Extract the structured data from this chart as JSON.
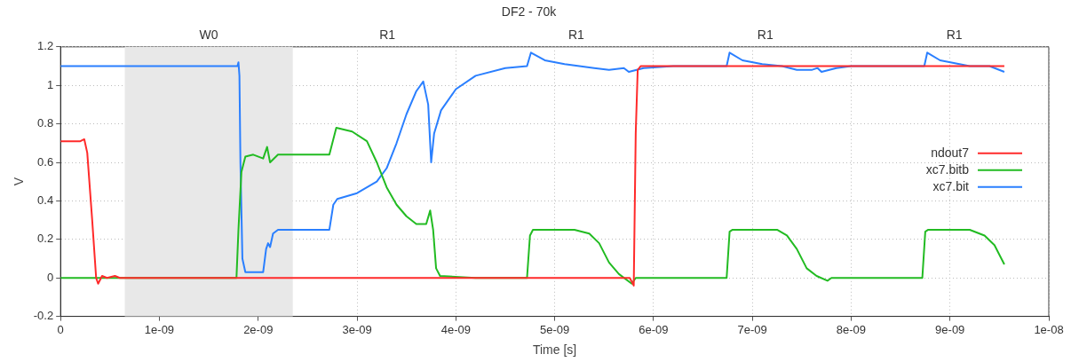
{
  "chart_data": {
    "type": "line",
    "title": "DF2 - 70k",
    "xlabel": "Time [s]",
    "ylabel": "V",
    "xlim": [
      0,
      1e-08
    ],
    "xticks": [
      0,
      {
        "value": 1e-09,
        "label": "1e-09"
      },
      {
        "value": 2e-09,
        "label": "2e-09"
      },
      {
        "value": 3e-09,
        "label": "3e-09"
      },
      {
        "value": 4e-09,
        "label": "4e-09"
      },
      {
        "value": 5e-09,
        "label": "5e-09"
      },
      {
        "value": 6e-09,
        "label": "6e-09"
      },
      {
        "value": 7e-09,
        "label": "7e-09"
      },
      {
        "value": 8e-09,
        "label": "8e-09"
      },
      {
        "value": 9e-09,
        "label": "9e-09"
      },
      {
        "value": 1e-08,
        "label": "1e-08"
      }
    ],
    "annotations": [
      "R1",
      "R1",
      "R1",
      "R1"
    ],
    "ylim": [
      -0.2,
      1.2
    ],
    "yticks": [
      -0.2,
      0,
      0.2,
      0.4,
      0.6,
      0.8,
      1,
      1.2
    ],
    "grid": true,
    "legend": "right",
    "marker": "none",
    "line_style": "solid",
    "bands": [
      {
        "axis": "x",
        "from": 6.5e-10,
        "to": 2.35e-09,
        "color": "#e8e8e8",
        "label": "W0"
      }
    ],
    "series": [
      {
        "name": "ndout7",
        "color": "#ff2a2a",
        "x": [
          0,
          2e-10,
          2.4e-10,
          2.7e-10,
          3.2e-10,
          3.6e-10,
          3.8e-10,
          4.2e-10,
          4.7e-10,
          5.5e-10,
          6e-10,
          1.8e-09,
          5.76e-09,
          5.8e-09,
          5.82e-09,
          5.84e-09,
          5.87e-09,
          9.55e-09
        ],
        "values": [
          0.71,
          0.71,
          0.72,
          0.65,
          0.3,
          0,
          -0.03,
          0.01,
          0,
          0.01,
          0,
          0,
          0,
          -0.04,
          0.75,
          1.08,
          1.1,
          1.1
        ]
      },
      {
        "name": "xc7.bitb",
        "color": "#22bb22",
        "x": [
          0,
          1.78e-09,
          1.8e-09,
          1.83e-09,
          1.87e-09,
          1.95e-09,
          2.05e-09,
          2.09e-09,
          2.12e-09,
          2.2e-09,
          2.72e-09,
          2.75e-09,
          2.79e-09,
          2.95e-09,
          3.1e-09,
          3.2e-09,
          3.3e-09,
          3.4e-09,
          3.5e-09,
          3.6e-09,
          3.7e-09,
          3.74e-09,
          3.77e-09,
          3.8e-09,
          3.84e-09,
          4.2e-09,
          4.72e-09,
          4.75e-09,
          4.78e-09,
          5.2e-09,
          5.35e-09,
          5.45e-09,
          5.55e-09,
          5.65e-09,
          5.78e-09,
          5.82e-09,
          6.74e-09,
          6.77e-09,
          6.8e-09,
          7.25e-09,
          7.35e-09,
          7.45e-09,
          7.55e-09,
          7.65e-09,
          7.76e-09,
          7.8e-09,
          8.72e-09,
          8.75e-09,
          8.78e-09,
          9.2e-09,
          9.35e-09,
          9.45e-09,
          9.55e-09
        ],
        "values": [
          0,
          0,
          0.25,
          0.55,
          0.63,
          0.64,
          0.62,
          0.68,
          0.6,
          0.64,
          0.64,
          0.7,
          0.78,
          0.76,
          0.71,
          0.6,
          0.47,
          0.38,
          0.32,
          0.28,
          0.28,
          0.35,
          0.25,
          0.05,
          0.01,
          0,
          0,
          0.22,
          0.25,
          0.25,
          0.23,
          0.18,
          0.08,
          0.02,
          -0.03,
          0,
          0,
          0.24,
          0.25,
          0.25,
          0.22,
          0.15,
          0.05,
          0.01,
          -0.015,
          0,
          0,
          0.24,
          0.25,
          0.25,
          0.22,
          0.17,
          0.07
        ]
      },
      {
        "name": "xc7.bit",
        "color": "#2a7fff",
        "x": [
          0,
          1.79e-09,
          1.8e-09,
          1.81e-09,
          1.82e-09,
          1.84e-09,
          1.87e-09,
          2.05e-09,
          2.08e-09,
          2.1e-09,
          2.12e-09,
          2.15e-09,
          2.2e-09,
          2.72e-09,
          2.76e-09,
          2.8e-09,
          3e-09,
          3.2e-09,
          3.3e-09,
          3.4e-09,
          3.5e-09,
          3.6e-09,
          3.67e-09,
          3.72e-09,
          3.75e-09,
          3.78e-09,
          3.85e-09,
          4e-09,
          4.2e-09,
          4.5e-09,
          4.72e-09,
          4.76e-09,
          4.9e-09,
          5.1e-09,
          5.4e-09,
          5.55e-09,
          5.7e-09,
          5.75e-09,
          5.9e-09,
          6.2e-09,
          6.74e-09,
          6.77e-09,
          6.9e-09,
          7.1e-09,
          7.3e-09,
          7.45e-09,
          7.6e-09,
          7.66e-09,
          7.7e-09,
          7.85e-09,
          8e-09,
          8.74e-09,
          8.77e-09,
          8.9e-09,
          9.2e-09,
          9.4e-09,
          9.55e-09
        ],
        "values": [
          1.1,
          1.1,
          1.12,
          1.05,
          0.6,
          0.1,
          0.03,
          0.03,
          0.15,
          0.18,
          0.16,
          0.23,
          0.25,
          0.25,
          0.38,
          0.41,
          0.44,
          0.5,
          0.57,
          0.7,
          0.85,
          0.97,
          1.02,
          0.9,
          0.6,
          0.75,
          0.87,
          0.98,
          1.05,
          1.09,
          1.1,
          1.17,
          1.13,
          1.11,
          1.09,
          1.08,
          1.09,
          1.07,
          1.09,
          1.1,
          1.1,
          1.17,
          1.13,
          1.11,
          1.1,
          1.08,
          1.08,
          1.09,
          1.07,
          1.09,
          1.1,
          1.1,
          1.17,
          1.13,
          1.1,
          1.1,
          1.07
        ]
      }
    ]
  }
}
